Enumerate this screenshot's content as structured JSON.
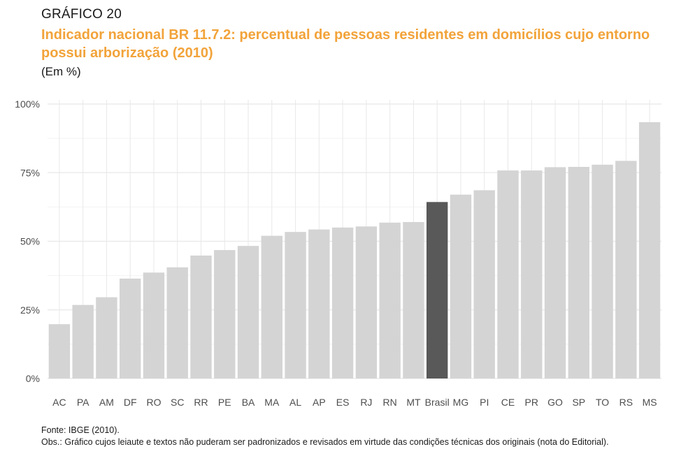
{
  "header": {
    "label": "GRÁFICO 20",
    "title": "Indicador nacional BR 11.7.2: percentual de pessoas residentes em domicílios cujo entorno possui arborização (2010)",
    "unit": "(Em %)"
  },
  "colors": {
    "title": "#f2a33a",
    "bar": "#d4d4d4",
    "highlight": "#595959",
    "grid": "#e8e8e8"
  },
  "chart_data": {
    "type": "bar",
    "categories": [
      "AC",
      "PA",
      "AM",
      "DF",
      "RO",
      "SC",
      "RR",
      "PE",
      "BA",
      "MA",
      "AL",
      "AP",
      "ES",
      "RJ",
      "RN",
      "MT",
      "Brasil",
      "MG",
      "PI",
      "CE",
      "PR",
      "GO",
      "SP",
      "TO",
      "RS",
      "MS"
    ],
    "values": [
      19.8,
      26.8,
      29.6,
      36.4,
      38.6,
      40.5,
      44.8,
      46.8,
      48.3,
      52.0,
      53.4,
      54.3,
      55.0,
      55.4,
      56.8,
      57.0,
      64.3,
      67.0,
      68.6,
      75.8,
      75.8,
      77.0,
      77.1,
      77.9,
      79.3,
      93.4
    ],
    "highlight": "Brasil",
    "ylim": [
      0,
      100
    ],
    "yticks": [
      "0%",
      "25%",
      "50%",
      "75%",
      "100%"
    ],
    "grid": true,
    "legend": "none"
  },
  "footer": {
    "source": "Fonte: IBGE (2010).",
    "note": "Obs.: Gráfico cujos leiaute e textos não puderam ser padronizados e revisados em virtude das condições técnicas dos originais (nota do Editorial)."
  }
}
